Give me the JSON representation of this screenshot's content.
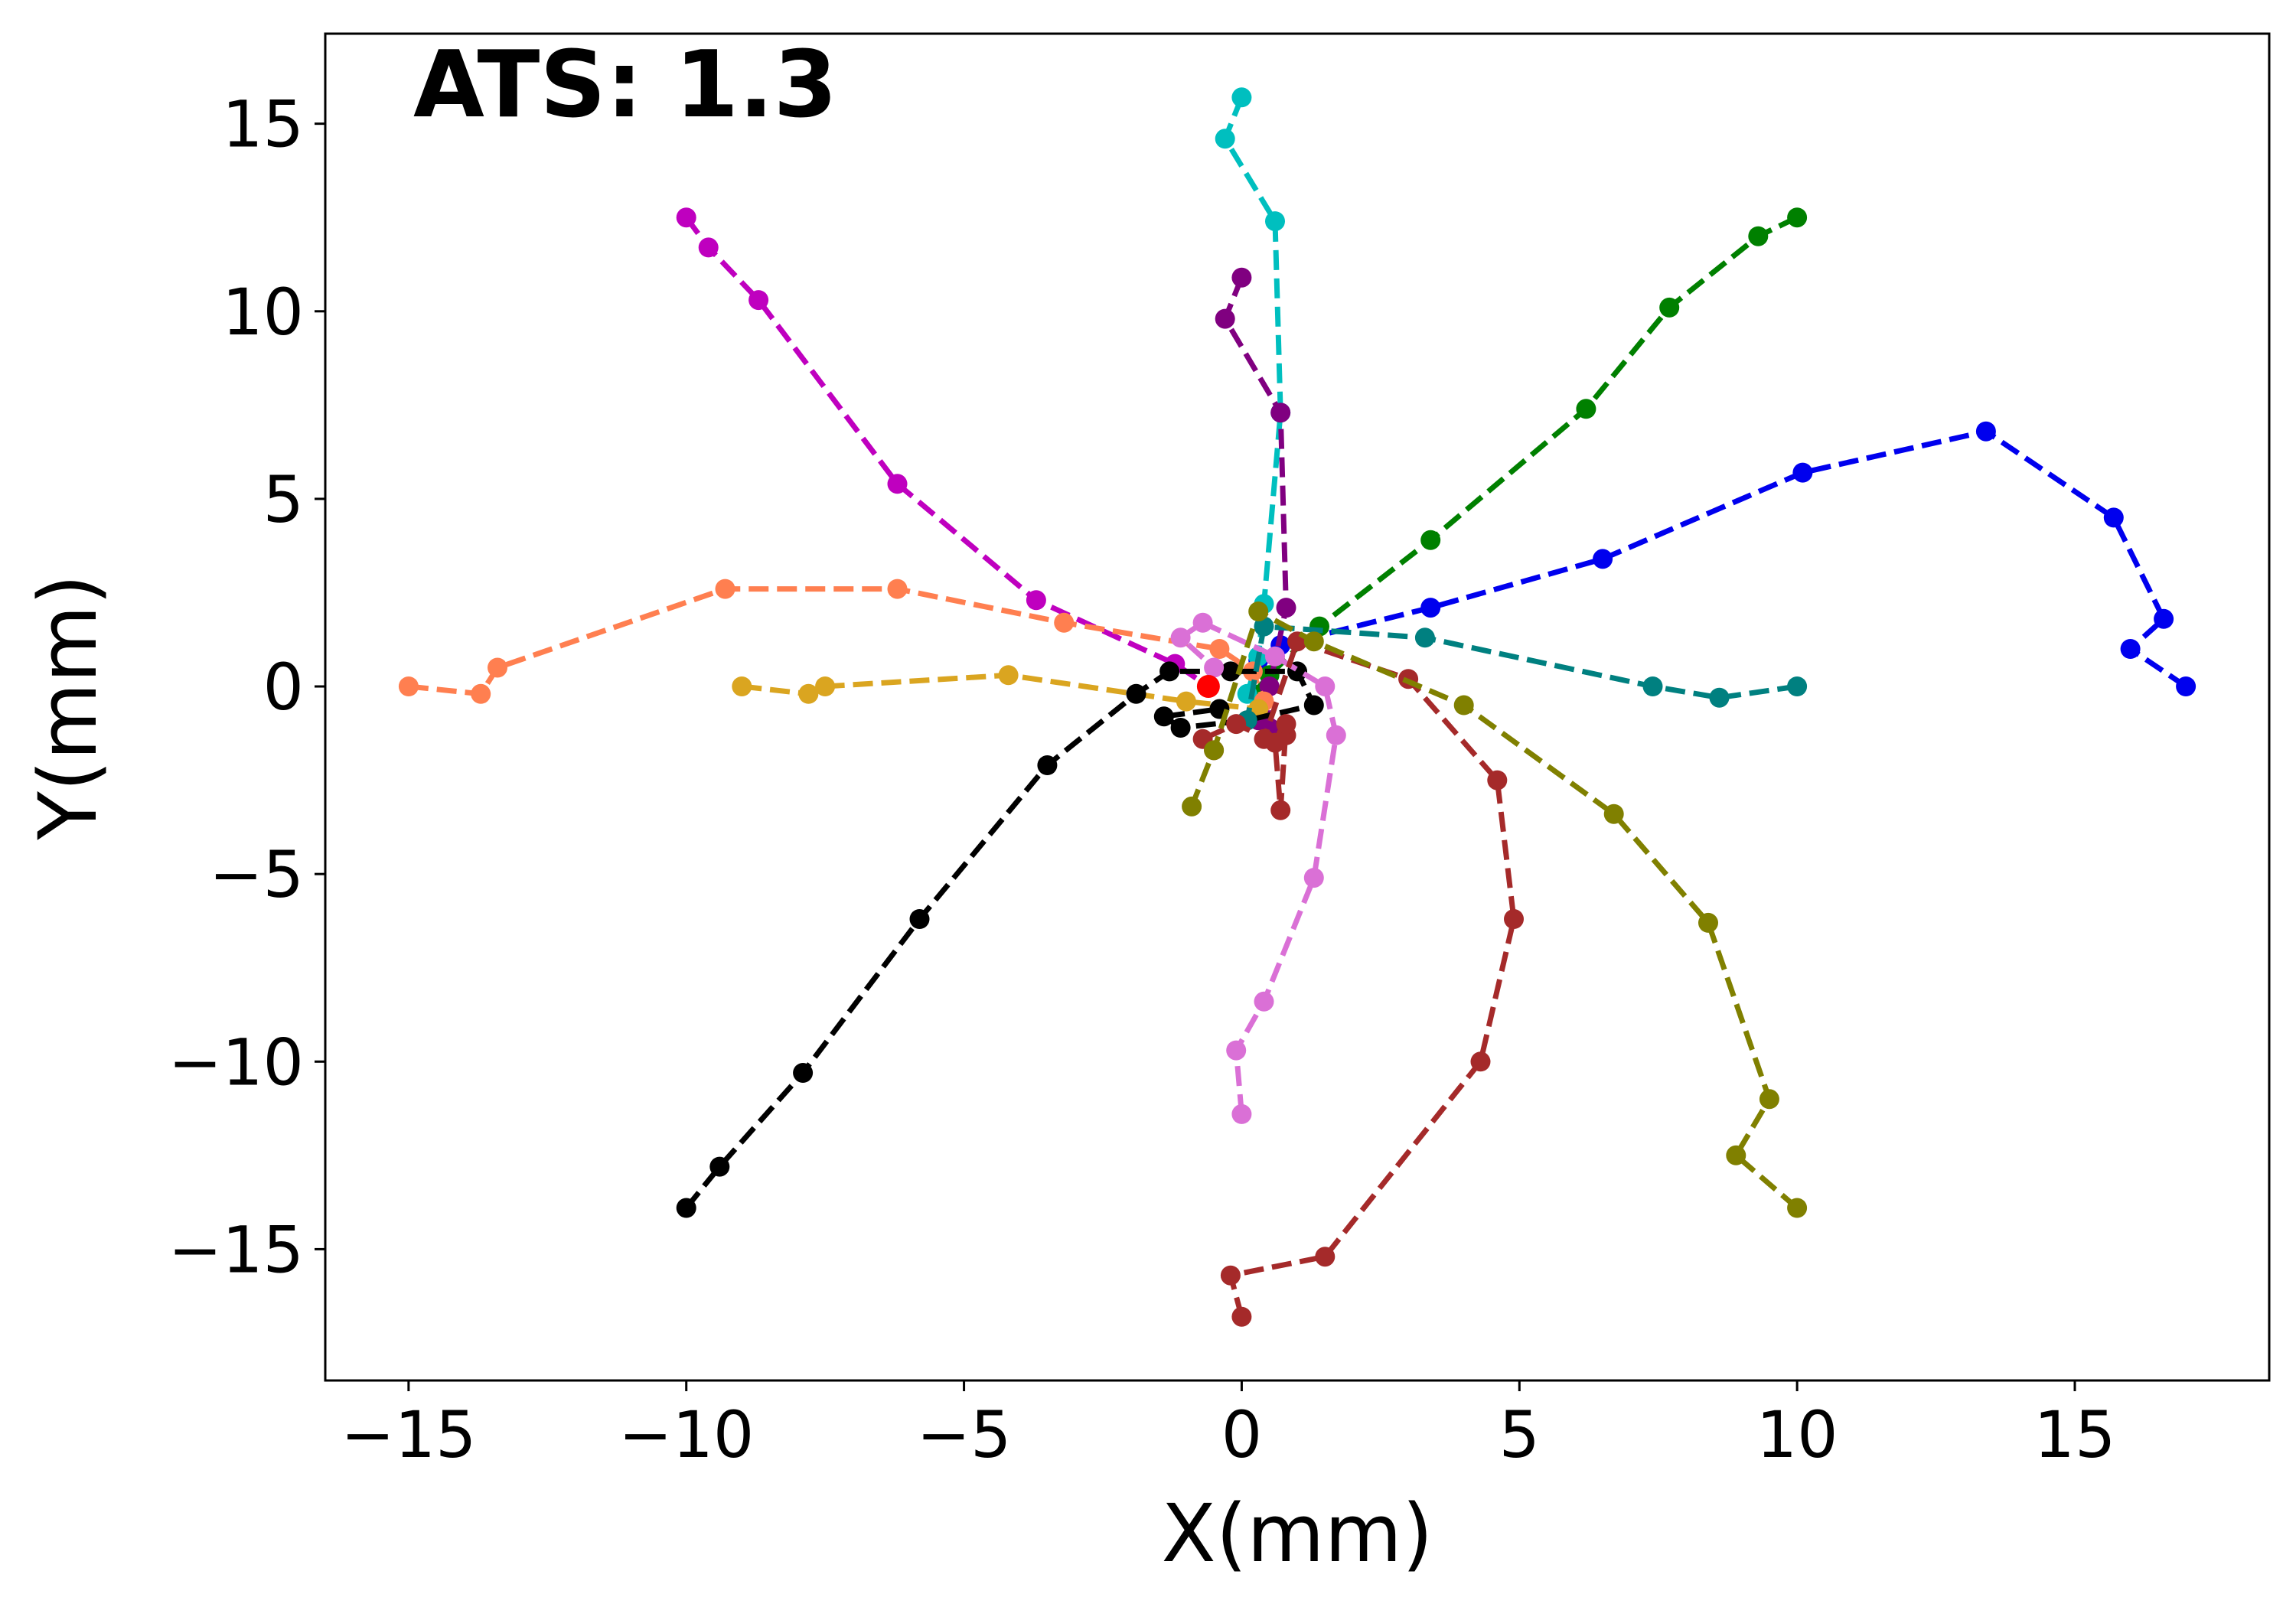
{
  "chart_data": {
    "type": "line",
    "annotation": "ATS: 1.3",
    "xlabel": "X(mm)",
    "ylabel": "Y(mm)",
    "xlim": [
      -16.5,
      18.5
    ],
    "ylim": [
      -18.5,
      17.4
    ],
    "x_ticks": [
      -15,
      -10,
      -5,
      0,
      5,
      10,
      15
    ],
    "y_ticks": [
      -15,
      -10,
      -5,
      0,
      5,
      10,
      15
    ],
    "x_tick_labels": [
      "−15",
      "−10",
      "−5",
      "0",
      "5",
      "10",
      "15"
    ],
    "y_tick_labels": [
      "−15",
      "−10",
      "−5",
      "0",
      "5",
      "10",
      "15"
    ],
    "grid": false,
    "line_style": "dashed",
    "marker": "circle",
    "center_marker": {
      "x": -0.6,
      "y": 0.0,
      "color": "#ff0000"
    },
    "series": [
      {
        "name": "blue",
        "color": "#0000ee",
        "points": [
          [
            17.0,
            0.0
          ],
          [
            16.0,
            1.0
          ],
          [
            16.6,
            1.8
          ],
          [
            15.7,
            4.5
          ],
          [
            13.4,
            6.8
          ],
          [
            10.1,
            5.7
          ],
          [
            6.5,
            3.4
          ],
          [
            3.4,
            2.1
          ],
          [
            0.7,
            1.1
          ],
          [
            0.3,
            0.7
          ]
        ]
      },
      {
        "name": "green",
        "color": "#008000",
        "points": [
          [
            10.0,
            12.5
          ],
          [
            9.3,
            12.0
          ],
          [
            7.7,
            10.1
          ],
          [
            6.2,
            7.4
          ],
          [
            3.4,
            3.9
          ],
          [
            1.4,
            1.6
          ],
          [
            0.5,
            0.3
          ],
          [
            0.2,
            -0.2
          ]
        ]
      },
      {
        "name": "cyan",
        "color": "#00bfbf",
        "points": [
          [
            0.0,
            15.7
          ],
          [
            -0.3,
            14.6
          ],
          [
            0.6,
            12.4
          ],
          [
            0.7,
            7.3
          ],
          [
            0.4,
            2.2
          ],
          [
            0.3,
            0.8
          ],
          [
            0.1,
            -0.2
          ]
        ]
      },
      {
        "name": "purple",
        "color": "#800080",
        "points": [
          [
            0.0,
            10.9
          ],
          [
            -0.3,
            9.8
          ],
          [
            0.7,
            7.3
          ],
          [
            0.8,
            2.1
          ],
          [
            0.5,
            0.0
          ],
          [
            0.5,
            -1.1
          ],
          [
            0.3,
            -0.9
          ]
        ]
      },
      {
        "name": "magenta",
        "color": "#bf00bf",
        "points": [
          [
            -10.0,
            12.5
          ],
          [
            -9.6,
            11.7
          ],
          [
            -8.7,
            10.3
          ],
          [
            -6.2,
            5.4
          ],
          [
            -3.7,
            2.3
          ],
          [
            -1.2,
            0.6
          ],
          [
            -0.6,
            0.0
          ]
        ]
      },
      {
        "name": "coral",
        "color": "#ff7f50",
        "points": [
          [
            -15.0,
            0.0
          ],
          [
            -13.7,
            -0.2
          ],
          [
            -13.4,
            0.5
          ],
          [
            -9.3,
            2.6
          ],
          [
            -6.2,
            2.6
          ],
          [
            -3.2,
            1.7
          ],
          [
            -0.4,
            1.0
          ],
          [
            0.2,
            0.4
          ],
          [
            0.4,
            -0.4
          ]
        ]
      },
      {
        "name": "goldenrod",
        "color": "#daa520",
        "points": [
          [
            -9.0,
            0.0
          ],
          [
            -7.8,
            -0.2
          ],
          [
            -7.5,
            0.0
          ],
          [
            -4.2,
            0.3
          ],
          [
            -1.0,
            -0.4
          ],
          [
            0.3,
            -0.6
          ]
        ]
      },
      {
        "name": "black",
        "color": "#000000",
        "points": [
          [
            -10.0,
            -13.9
          ],
          [
            -9.4,
            -12.8
          ],
          [
            -7.9,
            -10.3
          ],
          [
            -5.8,
            -6.2
          ],
          [
            -3.5,
            -2.1
          ],
          [
            -1.9,
            -0.2
          ],
          [
            -1.3,
            0.4
          ],
          [
            -0.2,
            0.4
          ],
          [
            1.0,
            0.4
          ],
          [
            1.3,
            -0.5
          ],
          [
            0.1,
            -0.9
          ],
          [
            -1.1,
            -1.1
          ],
          [
            -1.4,
            -0.8
          ],
          [
            -0.4,
            -0.6
          ]
        ]
      },
      {
        "name": "orchid",
        "color": "#da70d6",
        "points": [
          [
            0.0,
            -11.4
          ],
          [
            -0.1,
            -9.7
          ],
          [
            0.4,
            -8.4
          ],
          [
            1.3,
            -5.1
          ],
          [
            1.7,
            -1.3
          ],
          [
            1.5,
            0.0
          ],
          [
            0.6,
            0.8
          ],
          [
            -0.7,
            1.7
          ],
          [
            -1.1,
            1.3
          ],
          [
            -0.5,
            0.5
          ]
        ]
      },
      {
        "name": "teal",
        "color": "#008080",
        "points": [
          [
            10.0,
            0.0
          ],
          [
            8.6,
            -0.3
          ],
          [
            7.4,
            0.0
          ],
          [
            3.3,
            1.3
          ],
          [
            0.4,
            1.6
          ],
          [
            0.1,
            -0.9
          ]
        ]
      },
      {
        "name": "brown",
        "color": "#a52a2a",
        "points": [
          [
            0.0,
            -16.8
          ],
          [
            -0.2,
            -15.7
          ],
          [
            1.5,
            -15.2
          ],
          [
            4.3,
            -10.0
          ],
          [
            4.9,
            -6.2
          ],
          [
            4.6,
            -2.5
          ],
          [
            3.0,
            0.2
          ],
          [
            1.0,
            1.2
          ],
          [
            0.4,
            -1.4
          ],
          [
            0.8,
            -1.3
          ],
          [
            0.8,
            -1.0
          ],
          [
            0.7,
            -3.3
          ],
          [
            0.6,
            -1.5
          ],
          [
            -0.1,
            -1.0
          ],
          [
            -0.7,
            -1.4
          ],
          [
            -0.5,
            -1.7
          ]
        ]
      },
      {
        "name": "olive",
        "color": "#808000",
        "points": [
          [
            10.0,
            -13.9
          ],
          [
            8.9,
            -12.5
          ],
          [
            9.5,
            -11.0
          ],
          [
            8.4,
            -6.3
          ],
          [
            6.7,
            -3.4
          ],
          [
            4.0,
            -0.5
          ],
          [
            1.3,
            1.2
          ],
          [
            0.3,
            2.0
          ],
          [
            -0.5,
            -1.7
          ],
          [
            -0.9,
            -3.2
          ]
        ]
      }
    ]
  }
}
